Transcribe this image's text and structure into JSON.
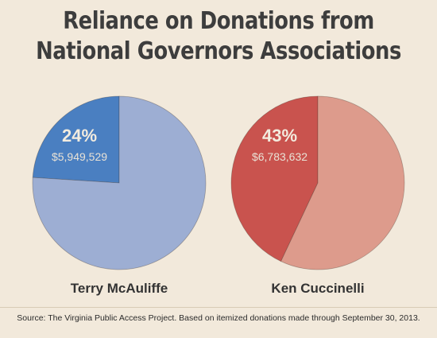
{
  "title": {
    "line1": "Reliance on Donations from",
    "line2": "National Governors Associations"
  },
  "chart_data": [
    {
      "type": "pie",
      "candidate": "Terry McAuliffe",
      "slices": [
        {
          "label": "24%",
          "value": 24,
          "amount": "$5,949,529",
          "color": "#4a7fc1",
          "labeled": true
        },
        {
          "label": "",
          "value": 76,
          "amount": "",
          "color": "#9daed3",
          "labeled": false
        }
      ]
    },
    {
      "type": "pie",
      "candidate": "Ken Cuccinelli",
      "slices": [
        {
          "label": "43%",
          "value": 43,
          "amount": "$6,783,632",
          "color": "#c9534e",
          "labeled": true
        },
        {
          "label": "",
          "value": 57,
          "amount": "",
          "color": "#dd9b8c",
          "labeled": false
        }
      ]
    }
  ],
  "source": "Source: The Virginia Public Access Project. Based on itemized donations made through September 30, 2013."
}
